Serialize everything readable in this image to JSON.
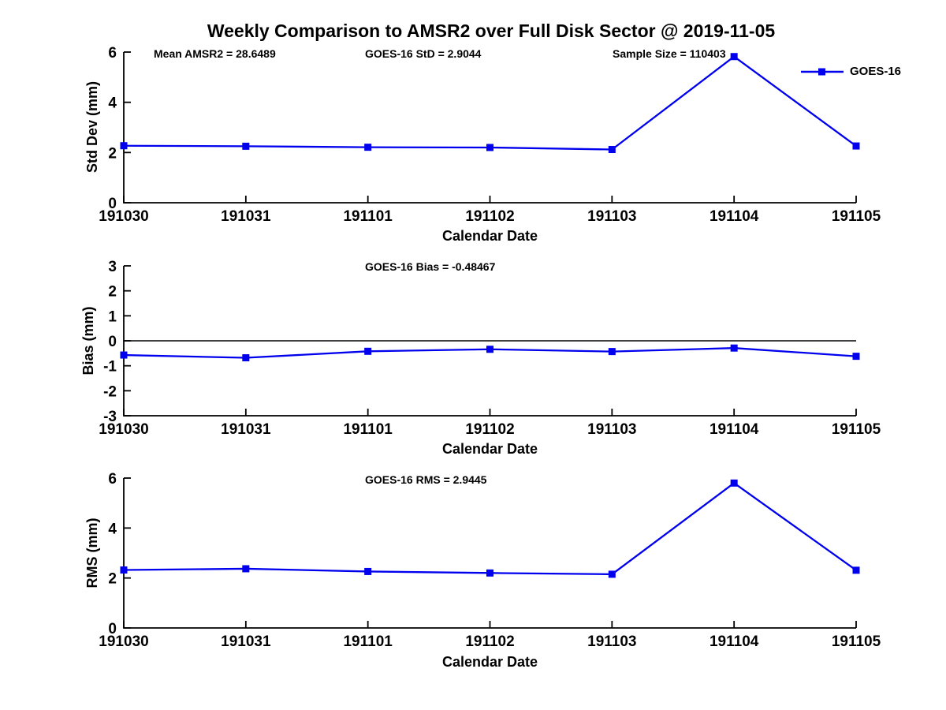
{
  "figure": {
    "title": "Weekly Comparison to AMSR2 over Full Disk Sector @ 2019-11-05"
  },
  "colors": {
    "series_blue": "#0000EE",
    "axis_black": "#000000"
  },
  "legend": {
    "label": "GOES-16",
    "position": "top-right-of-first-subplot"
  },
  "chart_data": [
    {
      "type": "line",
      "series_name": "GOES-16",
      "categories": [
        "191030",
        "191031",
        "191101",
        "191102",
        "191103",
        "191104",
        "191105"
      ],
      "values": [
        2.27,
        2.25,
        2.21,
        2.2,
        2.12,
        5.82,
        2.26
      ],
      "xlabel": "Calendar Date",
      "ylabel": "Std Dev (mm)",
      "ylim": [
        0,
        6
      ],
      "yticks": [
        0,
        2,
        4,
        6
      ],
      "zero_line": false,
      "grid": false,
      "marker": "square",
      "annotations": [
        "Mean AMSR2 = 28.6489",
        "GOES-16 StD = 2.9044",
        "Sample Size = 110403"
      ]
    },
    {
      "type": "line",
      "series_name": "GOES-16",
      "categories": [
        "191030",
        "191031",
        "191101",
        "191102",
        "191103",
        "191104",
        "191105"
      ],
      "values": [
        -0.57,
        -0.68,
        -0.42,
        -0.34,
        -0.43,
        -0.29,
        -0.62
      ],
      "xlabel": "Calendar Date",
      "ylabel": "Bias (mm)",
      "ylim": [
        -3,
        3
      ],
      "yticks": [
        -3,
        -2,
        -1,
        0,
        1,
        2,
        3
      ],
      "zero_line": true,
      "grid": false,
      "marker": "square",
      "annotations": [
        "GOES-16 Bias  = -0.48467"
      ]
    },
    {
      "type": "line",
      "series_name": "GOES-16",
      "categories": [
        "191030",
        "191031",
        "191101",
        "191102",
        "191103",
        "191104",
        "191105"
      ],
      "values": [
        2.32,
        2.37,
        2.26,
        2.2,
        2.15,
        5.8,
        2.31
      ],
      "xlabel": "Calendar Date",
      "ylabel": "RMS (mm)",
      "ylim": [
        0,
        6
      ],
      "yticks": [
        0,
        2,
        4,
        6
      ],
      "zero_line": false,
      "grid": false,
      "marker": "square",
      "annotations": [
        "GOES-16 RMS = 2.9445"
      ]
    }
  ]
}
